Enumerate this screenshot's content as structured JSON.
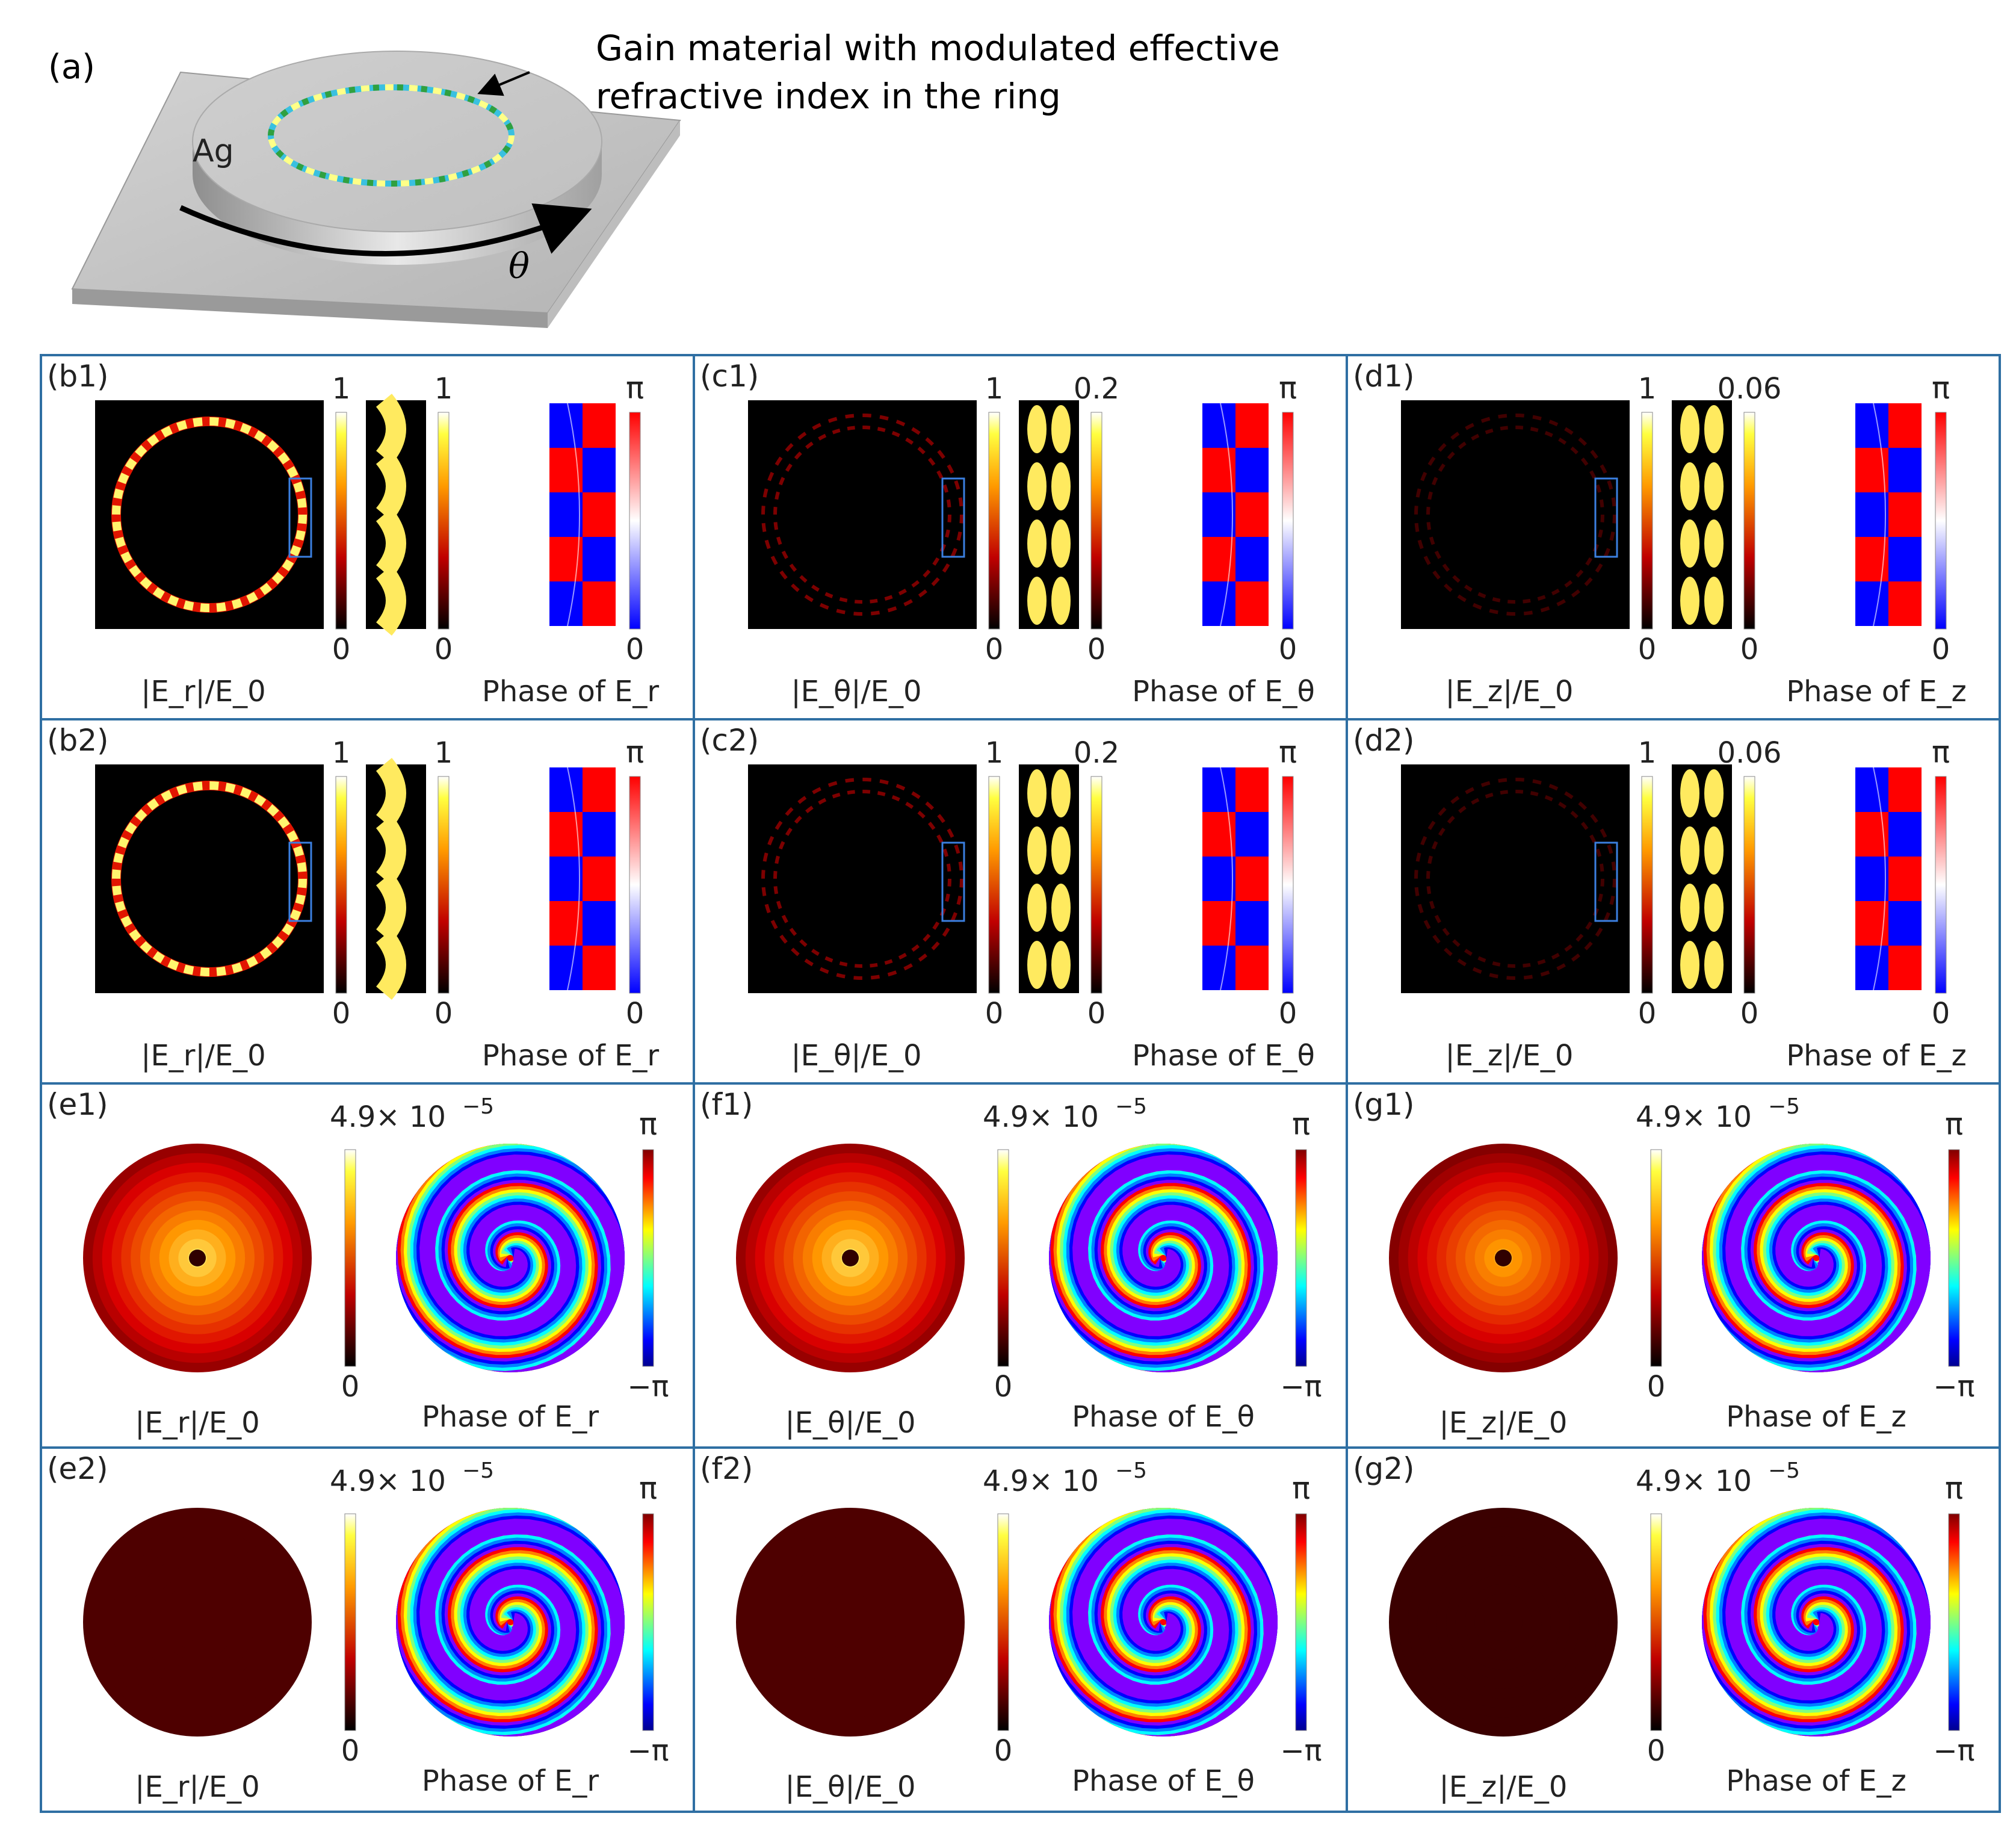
{
  "panel_a": {
    "label": "(a)",
    "annotation_line1": "Gain material with modulated effective",
    "annotation_line2": "refractive index in the ring",
    "ag_label": "Ag",
    "theta_label": "θ"
  },
  "near_field_rows": [
    {
      "row": 1,
      "panels": [
        {
          "label": "(b1)",
          "component": "r",
          "amp_max": "1",
          "zoom_max": "1",
          "phase_max": "π",
          "zero": "0",
          "amp_caption": "|E_r|/E_0",
          "phase_caption": "Phase of E_r",
          "ring_glow": 1.0,
          "ring_style": "single"
        },
        {
          "label": "(c1)",
          "component": "θ",
          "amp_max": "1",
          "zoom_max": "0.2",
          "phase_max": "π",
          "zero": "0",
          "amp_caption": "|E_θ|/E_0",
          "phase_caption": "Phase of E_θ",
          "ring_glow": 0.25,
          "ring_style": "double"
        },
        {
          "label": "(d1)",
          "component": "z",
          "amp_max": "1",
          "zoom_max": "0.06",
          "phase_max": "π",
          "zero": "0",
          "amp_caption": "|E_z|/E_0",
          "phase_caption": "Phase of E_z",
          "ring_glow": 0.08,
          "ring_style": "double"
        }
      ]
    },
    {
      "row": 2,
      "panels": [
        {
          "label": "(b2)",
          "component": "r",
          "amp_max": "1",
          "zoom_max": "1",
          "phase_max": "π",
          "zero": "0",
          "amp_caption": "|E_r|/E_0",
          "phase_caption": "Phase of E_r",
          "ring_glow": 1.0,
          "ring_style": "single"
        },
        {
          "label": "(c2)",
          "component": "θ",
          "amp_max": "1",
          "zoom_max": "0.2",
          "phase_max": "π",
          "zero": "0",
          "amp_caption": "|E_θ|/E_0",
          "phase_caption": "Phase of E_θ",
          "ring_glow": 0.25,
          "ring_style": "double"
        },
        {
          "label": "(d2)",
          "component": "z",
          "amp_max": "1",
          "zoom_max": "0.06",
          "phase_max": "π",
          "zero": "0",
          "amp_caption": "|E_z|/E_0",
          "phase_caption": "Phase of E_z",
          "ring_glow": 0.08,
          "ring_style": "double"
        }
      ]
    }
  ],
  "far_field_rows": [
    {
      "row": 1,
      "panels": [
        {
          "label": "(e1)",
          "component": "r",
          "amp_max": "4.9× 10",
          "amp_exp": "−5",
          "amp_min": "0",
          "phase_max": "π",
          "phase_min": "−π",
          "amp_caption": "|E_r|/E_0",
          "phase_caption": "Phase of E_r",
          "brightness": 1.0,
          "center_dark": true
        },
        {
          "label": "(f1)",
          "component": "θ",
          "amp_max": "4.9× 10",
          "amp_exp": "−5",
          "amp_min": "0",
          "phase_max": "π",
          "phase_min": "−π",
          "amp_caption": "|E_θ|/E_0",
          "phase_caption": "Phase of E_θ",
          "brightness": 1.0,
          "center_dark": true
        },
        {
          "label": "(g1)",
          "component": "z",
          "amp_max": "4.9× 10",
          "amp_exp": "−5",
          "amp_min": "0",
          "phase_max": "π",
          "phase_min": "−π",
          "amp_caption": "|E_z|/E_0",
          "phase_caption": "Phase of E_z",
          "brightness": 0.85,
          "center_dark": true
        }
      ]
    },
    {
      "row": 2,
      "panels": [
        {
          "label": "(e2)",
          "component": "r",
          "amp_max": "4.9× 10",
          "amp_exp": "−5",
          "amp_min": "0",
          "phase_max": "π",
          "phase_min": "−π",
          "amp_caption": "|E_r|/E_0",
          "phase_caption": "Phase of E_r",
          "brightness": 0.12,
          "center_dark": false
        },
        {
          "label": "(f2)",
          "component": "θ",
          "amp_max": "4.9× 10",
          "amp_exp": "−5",
          "amp_min": "0",
          "phase_max": "π",
          "phase_min": "−π",
          "amp_caption": "|E_θ|/E_0",
          "phase_caption": "Phase of E_θ",
          "brightness": 0.12,
          "center_dark": false
        },
        {
          "label": "(g2)",
          "component": "z",
          "amp_max": "4.9× 10",
          "amp_exp": "−5",
          "amp_min": "0",
          "phase_max": "π",
          "phase_min": "−π",
          "amp_caption": "|E_z|/E_0",
          "phase_caption": "Phase of E_z",
          "brightness": 0.08,
          "center_dark": false
        }
      ]
    }
  ],
  "colors": {
    "frame": "#2f6fa3",
    "hot_dark": "#000000",
    "hot_red": "#c00000",
    "hot_orange": "#ff7a00",
    "hot_yellow": "#ffff40",
    "phase_red": "#ff0000",
    "phase_blue": "#0000ff",
    "blue_box": "#3b7fe0"
  }
}
